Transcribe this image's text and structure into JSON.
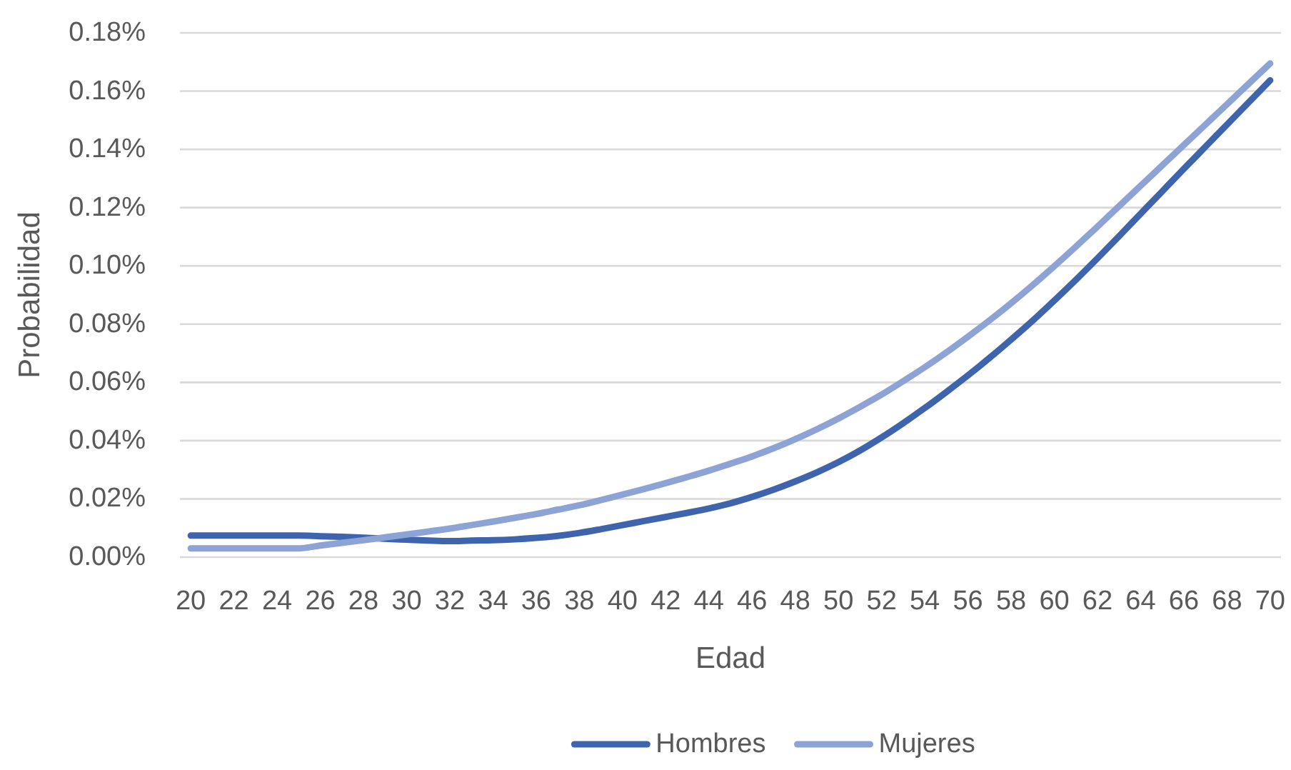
{
  "chart_data": {
    "type": "line",
    "xlabel": "Edad",
    "ylabel": "Probabilidad",
    "categories": [
      "20",
      null,
      "22",
      null,
      "24",
      null,
      "26",
      null,
      "28",
      null,
      "30",
      null,
      "32",
      null,
      "34",
      null,
      "36",
      null,
      "38",
      null,
      "40",
      null,
      "42",
      null,
      "44",
      null,
      "46",
      null,
      "48",
      null,
      "50",
      null,
      "52",
      null,
      "54",
      null,
      "56",
      null,
      "58",
      null,
      "60",
      null,
      "62",
      null,
      "64",
      null,
      "66",
      null,
      "68",
      null,
      "70"
    ],
    "series": [
      {
        "name": "Hombres",
        "color": "#3d64ad",
        "values": [
          0.0074,
          0.0074,
          0.0074,
          0.0074,
          0.0074,
          0.0074,
          0.0072,
          0.007,
          0.0067,
          0.0063,
          0.006,
          0.0057,
          0.0055,
          0.0057,
          0.0058,
          0.0061,
          0.0066,
          0.0073,
          0.0083,
          0.0096,
          0.011,
          0.0124,
          0.0138,
          0.0152,
          0.0167,
          0.0185,
          0.0207,
          0.0232,
          0.026,
          0.0291,
          0.0326,
          0.0366,
          0.0411,
          0.046,
          0.0512,
          0.0567,
          0.0624,
          0.0684,
          0.0747,
          0.0812,
          0.0881,
          0.0952,
          0.1026,
          0.1102,
          0.1179,
          0.1256,
          0.1333,
          0.1409,
          0.1485,
          0.1561,
          0.1637
        ]
      },
      {
        "name": "Mujeres",
        "color": "#8ea3d5",
        "values": [
          0.003,
          0.003,
          0.003,
          0.003,
          0.003,
          0.003,
          0.004,
          0.0049,
          0.0058,
          0.0068,
          0.0078,
          0.0088,
          0.0098,
          0.011,
          0.0122,
          0.0135,
          0.0148,
          0.0163,
          0.0178,
          0.0196,
          0.0215,
          0.0234,
          0.0254,
          0.0275,
          0.0297,
          0.0321,
          0.0346,
          0.0374,
          0.0405,
          0.0439,
          0.0476,
          0.0516,
          0.0558,
          0.0604,
          0.0652,
          0.0703,
          0.0757,
          0.0813,
          0.0872,
          0.0934,
          0.0999,
          0.1066,
          0.1135,
          0.1205,
          0.1275,
          0.1345,
          0.1415,
          0.1485,
          0.1555,
          0.1625,
          0.1695
        ]
      }
    ],
    "ylim": [
      0,
      0.18
    ],
    "yticks": [
      {
        "value": 0,
        "label": "0.00%"
      },
      {
        "value": 0.02,
        "label": "0.02%"
      },
      {
        "value": 0.04,
        "label": "0.04%"
      },
      {
        "value": 0.06,
        "label": "0.06%"
      },
      {
        "value": 0.08,
        "label": "0.08%"
      },
      {
        "value": 0.1,
        "label": "0.10%"
      },
      {
        "value": 0.12,
        "label": "0.12%"
      },
      {
        "value": 0.14,
        "label": "0.14%"
      },
      {
        "value": 0.16,
        "label": "0.16%"
      },
      {
        "value": 0.18,
        "label": "0.18%"
      }
    ],
    "grid": "y",
    "legend": "bottom"
  }
}
